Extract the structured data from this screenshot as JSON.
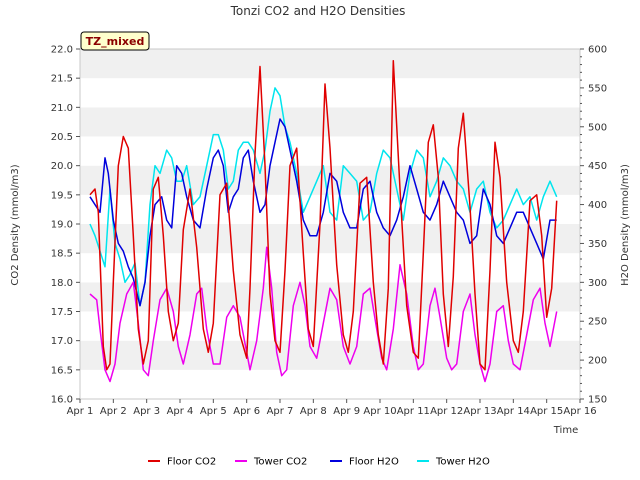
{
  "chart_data": {
    "type": "line",
    "title": "Tonzi CO2 and H2O Densities",
    "xlabel": "Time",
    "ylabel": "CO2 Density (mmol/m3)",
    "y2label": "H2O Density (mmol/m3)",
    "badge": "TZ_mixed",
    "xlim": [
      1,
      16
    ],
    "ylim": [
      16.0,
      22.0
    ],
    "y2lim": [
      150,
      600
    ],
    "x_ticks": [
      "Apr 1",
      "Apr 2",
      "Apr 3",
      "Apr 4",
      "Apr 5",
      "Apr 6",
      "Apr 7",
      "Apr 8",
      "Apr 9",
      "Apr 10",
      "Apr 11",
      "Apr 12",
      "Apr 13",
      "Apr 14",
      "Apr 15",
      "Apr 16"
    ],
    "y_ticks": [
      "16.0",
      "16.5",
      "17.0",
      "17.5",
      "18.0",
      "18.5",
      "19.0",
      "19.5",
      "20.0",
      "20.5",
      "21.0",
      "21.5",
      "22.0"
    ],
    "y2_ticks": [
      "150",
      "200",
      "250",
      "300",
      "350",
      "400",
      "450",
      "500",
      "550",
      "600"
    ],
    "grid": "horizontal bands",
    "legend_position": "bottom",
    "series": [
      {
        "name": "Floor CO2",
        "axis": "left",
        "color": "#e00000",
        "x": [
          1.3,
          1.45,
          1.55,
          1.7,
          1.8,
          1.9,
          2.0,
          2.15,
          2.3,
          2.45,
          2.6,
          2.75,
          2.9,
          3.05,
          3.2,
          3.35,
          3.5,
          3.65,
          3.8,
          3.95,
          4.1,
          4.3,
          4.5,
          4.7,
          4.85,
          5.0,
          5.2,
          5.4,
          5.6,
          5.8,
          6.0,
          6.1,
          6.25,
          6.4,
          6.55,
          6.7,
          6.85,
          7.0,
          7.15,
          7.3,
          7.5,
          7.7,
          7.85,
          8.0,
          8.2,
          8.35,
          8.5,
          8.7,
          8.9,
          9.05,
          9.2,
          9.4,
          9.6,
          9.8,
          9.95,
          10.1,
          10.25,
          10.4,
          10.6,
          10.8,
          11.0,
          11.15,
          11.3,
          11.45,
          11.6,
          11.75,
          11.9,
          12.05,
          12.2,
          12.35,
          12.5,
          12.7,
          12.85,
          13.0,
          13.15,
          13.3,
          13.45,
          13.6,
          13.8,
          14.0,
          14.15,
          14.3,
          14.5,
          14.7,
          14.85,
          15.0,
          15.15,
          15.3
        ],
        "y": [
          19.5,
          19.6,
          19.2,
          16.9,
          16.5,
          16.6,
          18.0,
          20.0,
          20.5,
          20.3,
          18.8,
          17.2,
          16.6,
          17.0,
          19.6,
          19.8,
          18.8,
          17.5,
          17.0,
          17.3,
          18.9,
          19.6,
          18.6,
          17.2,
          16.8,
          17.3,
          19.5,
          19.7,
          18.2,
          17.1,
          16.7,
          17.9,
          20.2,
          21.7,
          20.0,
          17.8,
          17.0,
          16.8,
          18.2,
          20.0,
          20.3,
          18.5,
          17.2,
          16.9,
          19.0,
          21.4,
          20.3,
          18.3,
          17.1,
          16.8,
          17.5,
          19.7,
          19.8,
          18.0,
          17.1,
          16.6,
          17.9,
          21.8,
          19.6,
          17.6,
          16.8,
          16.7,
          18.5,
          20.4,
          20.7,
          19.8,
          17.8,
          16.9,
          18.1,
          20.3,
          20.9,
          19.3,
          17.8,
          16.6,
          16.5,
          18.2,
          20.4,
          19.8,
          18.0,
          17.0,
          16.8,
          17.5,
          19.4,
          19.5,
          18.8,
          17.4,
          17.9,
          19.4
        ]
      },
      {
        "name": "Tower CO2",
        "axis": "left",
        "color": "#ee00ee",
        "x": [
          1.3,
          1.5,
          1.6,
          1.75,
          1.9,
          2.05,
          2.2,
          2.4,
          2.6,
          2.75,
          2.9,
          3.05,
          3.2,
          3.4,
          3.6,
          3.8,
          3.95,
          4.1,
          4.3,
          4.5,
          4.65,
          4.8,
          5.0,
          5.2,
          5.4,
          5.6,
          5.8,
          6.0,
          6.1,
          6.3,
          6.5,
          6.6,
          6.75,
          6.9,
          7.05,
          7.2,
          7.4,
          7.6,
          7.75,
          7.9,
          8.1,
          8.3,
          8.5,
          8.7,
          8.9,
          9.1,
          9.3,
          9.5,
          9.7,
          9.9,
          10.05,
          10.2,
          10.4,
          10.6,
          10.8,
          11.0,
          11.15,
          11.3,
          11.5,
          11.65,
          11.8,
          12.0,
          12.15,
          12.3,
          12.5,
          12.7,
          12.85,
          13.0,
          13.15,
          13.3,
          13.5,
          13.7,
          13.85,
          14.0,
          14.2,
          14.4,
          14.6,
          14.8,
          14.95,
          15.1,
          15.3
        ],
        "y": [
          17.8,
          17.7,
          17.2,
          16.5,
          16.3,
          16.6,
          17.3,
          17.8,
          18.0,
          17.3,
          16.5,
          16.4,
          17.0,
          17.7,
          17.9,
          17.5,
          16.9,
          16.6,
          17.1,
          17.8,
          17.9,
          17.2,
          16.6,
          16.6,
          17.4,
          17.6,
          17.4,
          16.8,
          16.5,
          17.0,
          17.9,
          18.6,
          17.9,
          16.8,
          16.4,
          16.5,
          17.6,
          18.0,
          17.6,
          16.9,
          16.7,
          17.3,
          17.9,
          17.7,
          16.9,
          16.6,
          16.9,
          17.8,
          17.9,
          17.2,
          16.7,
          16.5,
          17.2,
          18.3,
          17.8,
          16.9,
          16.5,
          16.6,
          17.6,
          17.9,
          17.4,
          16.7,
          16.5,
          16.6,
          17.5,
          17.8,
          17.1,
          16.6,
          16.3,
          16.6,
          17.5,
          17.6,
          17.0,
          16.6,
          16.5,
          17.1,
          17.7,
          17.9,
          17.3,
          16.9,
          17.5
        ]
      },
      {
        "name": "Floor H2O",
        "axis": "right",
        "color": "#0000dd",
        "x": [
          1.3,
          1.45,
          1.6,
          1.75,
          1.85,
          2.0,
          2.15,
          2.3,
          2.45,
          2.6,
          2.8,
          2.95,
          3.1,
          3.25,
          3.45,
          3.6,
          3.75,
          3.9,
          4.05,
          4.2,
          4.4,
          4.6,
          4.8,
          5.0,
          5.15,
          5.3,
          5.45,
          5.6,
          5.75,
          5.9,
          6.05,
          6.2,
          6.4,
          6.55,
          6.7,
          6.85,
          7.0,
          7.15,
          7.3,
          7.5,
          7.7,
          7.9,
          8.1,
          8.3,
          8.5,
          8.7,
          8.9,
          9.1,
          9.3,
          9.5,
          9.7,
          9.9,
          10.1,
          10.3,
          10.5,
          10.7,
          10.9,
          11.1,
          11.3,
          11.5,
          11.7,
          11.9,
          12.1,
          12.3,
          12.5,
          12.7,
          12.9,
          13.1,
          13.3,
          13.5,
          13.7,
          13.9,
          14.1,
          14.3,
          14.5,
          14.7,
          14.9,
          15.1,
          15.3
        ],
        "y": [
          410,
          400,
          390,
          460,
          440,
          380,
          350,
          340,
          320,
          305,
          270,
          300,
          360,
          400,
          410,
          380,
          370,
          450,
          440,
          410,
          380,
          370,
          420,
          460,
          470,
          450,
          390,
          410,
          420,
          460,
          470,
          430,
          390,
          400,
          450,
          480,
          510,
          500,
          470,
          430,
          380,
          360,
          360,
          390,
          440,
          430,
          390,
          370,
          370,
          420,
          430,
          390,
          370,
          360,
          380,
          410,
          450,
          420,
          390,
          380,
          400,
          430,
          410,
          390,
          380,
          350,
          360,
          420,
          400,
          360,
          350,
          370,
          390,
          390,
          370,
          350,
          330,
          380,
          380
        ]
      },
      {
        "name": "Tower H2O",
        "axis": "right",
        "color": "#00e5ee",
        "x": [
          1.3,
          1.45,
          1.6,
          1.75,
          1.9,
          2.05,
          2.2,
          2.35,
          2.5,
          2.65,
          2.8,
          2.95,
          3.1,
          3.25,
          3.4,
          3.6,
          3.75,
          3.9,
          4.05,
          4.2,
          4.4,
          4.6,
          4.8,
          5.0,
          5.15,
          5.3,
          5.45,
          5.6,
          5.75,
          5.9,
          6.05,
          6.2,
          6.4,
          6.55,
          6.7,
          6.85,
          7.0,
          7.15,
          7.3,
          7.5,
          7.7,
          7.9,
          8.1,
          8.3,
          8.5,
          8.7,
          8.9,
          9.1,
          9.3,
          9.5,
          9.7,
          9.9,
          10.1,
          10.3,
          10.5,
          10.7,
          10.9,
          11.1,
          11.3,
          11.5,
          11.7,
          11.9,
          12.1,
          12.3,
          12.5,
          12.7,
          12.9,
          13.1,
          13.3,
          13.5,
          13.7,
          13.9,
          14.1,
          14.3,
          14.5,
          14.7,
          14.9,
          15.1,
          15.3
        ],
        "y": [
          375,
          360,
          340,
          320,
          420,
          350,
          330,
          300,
          310,
          325,
          270,
          300,
          400,
          450,
          440,
          470,
          460,
          430,
          430,
          450,
          400,
          410,
          450,
          490,
          490,
          470,
          420,
          430,
          470,
          480,
          480,
          470,
          440,
          470,
          520,
          550,
          540,
          500,
          480,
          440,
          390,
          410,
          430,
          450,
          390,
          380,
          450,
          440,
          430,
          380,
          390,
          440,
          470,
          460,
          420,
          380,
          440,
          470,
          460,
          410,
          430,
          460,
          450,
          430,
          420,
          390,
          420,
          430,
          390,
          370,
          380,
          400,
          420,
          400,
          410,
          380,
          410,
          430,
          410
        ]
      }
    ]
  }
}
